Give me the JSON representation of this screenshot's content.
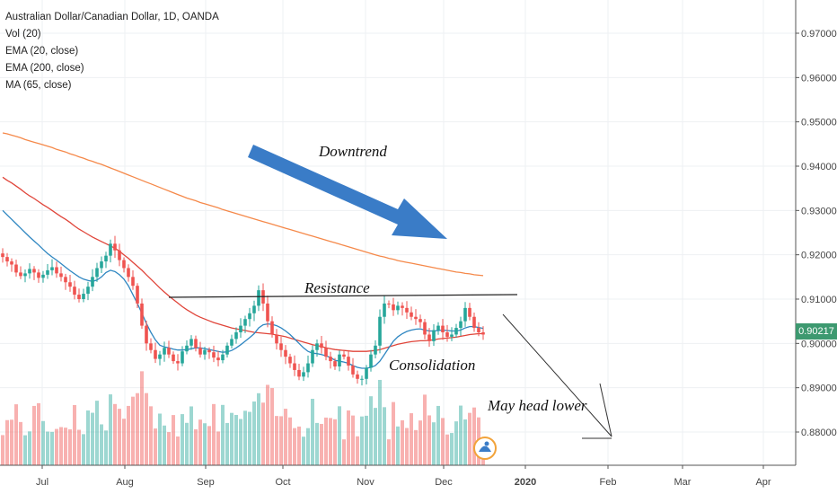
{
  "header": {
    "title": "Australian Dollar/Canadian Dollar, 1D, OANDA",
    "indicators": [
      "Vol (20)",
      "EMA (20, close)",
      "EMA (200, close)",
      "MA (65, close)"
    ]
  },
  "annotations": {
    "downtrend": "Downtrend",
    "resistance": "Resistance",
    "consolidation": "Consolidation",
    "may_head_lower": "May head lower"
  },
  "last_price": "0.90217",
  "colors": {
    "up": "#26a69a",
    "down": "#ef5350",
    "ema20": "#2e86c1",
    "ema200": "#f5894a",
    "ma65": "#e0453a",
    "arrow": "#3a7cc7",
    "price_tag": "#3d9970"
  },
  "chart_data": {
    "type": "candlestick",
    "title": "Australian Dollar/Canadian Dollar, 1D, OANDA",
    "x_ticks": [
      "Jul",
      "Aug",
      "Sep",
      "Oct",
      "Nov",
      "Dec",
      "2020",
      "Feb",
      "Mar",
      "Apr"
    ],
    "y_ticks": [
      "0.97000",
      "0.96000",
      "0.95000",
      "0.94000",
      "0.93000",
      "0.92000",
      "0.91000",
      "0.90000",
      "0.89000",
      "0.88000"
    ],
    "ylim": [
      0.8725,
      0.9775
    ],
    "last_price": 0.90217,
    "resistance_level": 0.9105,
    "closes": [
      0.9195,
      0.9185,
      0.9178,
      0.916,
      0.9152,
      0.9158,
      0.9168,
      0.916,
      0.9148,
      0.9155,
      0.9165,
      0.9172,
      0.9158,
      0.915,
      0.9138,
      0.9128,
      0.911,
      0.91,
      0.9112,
      0.9128,
      0.915,
      0.917,
      0.9185,
      0.9198,
      0.9225,
      0.921,
      0.9188,
      0.917,
      0.915,
      0.913,
      0.909,
      0.904,
      0.9,
      0.8985,
      0.8965,
      0.8975,
      0.899,
      0.8975,
      0.896,
      0.8955,
      0.8982,
      0.8995,
      0.901,
      0.899,
      0.8975,
      0.8985,
      0.898,
      0.8968,
      0.8962,
      0.8975,
      0.8995,
      0.901,
      0.9025,
      0.904,
      0.9055,
      0.9068,
      0.9085,
      0.912,
      0.909,
      0.905,
      0.902,
      0.9,
      0.8985,
      0.897,
      0.8955,
      0.894,
      0.8925,
      0.8935,
      0.8955,
      0.8985,
      0.9,
      0.899,
      0.897,
      0.896,
      0.8948,
      0.8975,
      0.897,
      0.895,
      0.893,
      0.892,
      0.892,
      0.8945,
      0.8975,
      0.8995,
      0.906,
      0.909,
      0.9088,
      0.9075,
      0.9085,
      0.908,
      0.907,
      0.906,
      0.9055,
      0.9048,
      0.902,
      0.9005,
      0.903,
      0.904,
      0.9025,
      0.9015,
      0.902,
      0.9035,
      0.905,
      0.908,
      0.906,
      0.9035,
      0.9025,
      0.902
    ],
    "ema20": [
      0.93,
      0.929,
      0.928,
      0.927,
      0.926,
      0.925,
      0.924,
      0.9231,
      0.9222,
      0.9212,
      0.9203,
      0.9195,
      0.9188,
      0.918,
      0.9172,
      0.9164,
      0.9157,
      0.915,
      0.9145,
      0.9142,
      0.914,
      0.9143,
      0.915,
      0.916,
      0.9165,
      0.9162,
      0.9155,
      0.9145,
      0.913,
      0.911,
      0.909,
      0.9068,
      0.9045,
      0.9025,
      0.9008,
      0.8996,
      0.8992,
      0.899,
      0.8987,
      0.8985,
      0.8985,
      0.8986,
      0.8988,
      0.899,
      0.899,
      0.8988,
      0.8986,
      0.8984,
      0.8982,
      0.898,
      0.8981,
      0.8984,
      0.899,
      0.8997,
      0.9005,
      0.9013,
      0.9022,
      0.9035,
      0.9042,
      0.9044,
      0.9043,
      0.904,
      0.9035,
      0.9028,
      0.902,
      0.901,
      0.9,
      0.899,
      0.8982,
      0.8978,
      0.8977,
      0.8975,
      0.8972,
      0.8968,
      0.8962,
      0.896,
      0.8958,
      0.8955,
      0.895,
      0.8946,
      0.8944,
      0.8944,
      0.8946,
      0.895,
      0.896,
      0.8975,
      0.899,
      0.9005,
      0.9015,
      0.9022,
      0.9027,
      0.903,
      0.9032,
      0.9033,
      0.903,
      0.9028,
      0.9028,
      0.9029,
      0.903,
      0.9029,
      0.9028,
      0.9028,
      0.903,
      0.9035,
      0.9038,
      0.9038,
      0.9036,
      0.9034
    ],
    "ma65": [
      0.9375,
      0.9368,
      0.9362,
      0.9355,
      0.9348,
      0.934,
      0.9333,
      0.9327,
      0.932,
      0.9313,
      0.9307,
      0.93,
      0.9293,
      0.9286,
      0.928,
      0.9273,
      0.9265,
      0.9258,
      0.9252,
      0.9246,
      0.924,
      0.9235,
      0.923,
      0.9225,
      0.922,
      0.9215,
      0.9208,
      0.92,
      0.9192,
      0.9183,
      0.9174,
      0.9165,
      0.9155,
      0.9145,
      0.9135,
      0.9125,
      0.9116,
      0.9107,
      0.9099,
      0.9091,
      0.9083,
      0.9076,
      0.907,
      0.9064,
      0.9059,
      0.9055,
      0.9051,
      0.9047,
      0.9044,
      0.9041,
      0.9038,
      0.9035,
      0.9033,
      0.9031,
      0.9029,
      0.9027,
      0.9025,
      0.9024,
      0.9023,
      0.9022,
      0.9021,
      0.9019,
      0.9017,
      0.9015,
      0.9012,
      0.9009,
      0.9006,
      0.9003,
      0.9,
      0.8997,
      0.8995,
      0.8993,
      0.899,
      0.8988,
      0.8986,
      0.8985,
      0.8984,
      0.8983,
      0.8982,
      0.8982,
      0.8982,
      0.8982,
      0.8983,
      0.8984,
      0.8986,
      0.8989,
      0.8992,
      0.8995,
      0.8998,
      0.9,
      0.9002,
      0.9004,
      0.9005,
      0.9006,
      0.9006,
      0.9007,
      0.9008,
      0.901,
      0.9011,
      0.9012,
      0.9013,
      0.9014,
      0.9016,
      0.9018,
      0.902,
      0.9021,
      0.9022,
      0.9022
    ],
    "ema200": [
      0.9475,
      0.9473,
      0.947,
      0.9467,
      0.9464,
      0.946,
      0.9457,
      0.9454,
      0.9451,
      0.9448,
      0.9445,
      0.9442,
      0.9438,
      0.9435,
      0.9432,
      0.9428,
      0.9425,
      0.9421,
      0.9418,
      0.9414,
      0.9411,
      0.9407,
      0.9404,
      0.94,
      0.9396,
      0.9392,
      0.9388,
      0.9384,
      0.938,
      0.9376,
      0.9372,
      0.9368,
      0.9364,
      0.936,
      0.9356,
      0.9352,
      0.9348,
      0.9344,
      0.934,
      0.9336,
      0.9332,
      0.9328,
      0.9325,
      0.9322,
      0.9318,
      0.9315,
      0.9312,
      0.9309,
      0.9306,
      0.9302,
      0.9299,
      0.9296,
      0.9293,
      0.929,
      0.9287,
      0.9284,
      0.9281,
      0.9278,
      0.9275,
      0.9272,
      0.9269,
      0.9266,
      0.9263,
      0.926,
      0.9257,
      0.9254,
      0.9251,
      0.9248,
      0.9245,
      0.9242,
      0.9239,
      0.9236,
      0.9233,
      0.923,
      0.9227,
      0.9224,
      0.9221,
      0.9218,
      0.9215,
      0.9212,
      0.9209,
      0.9206,
      0.9203,
      0.92,
      0.9197,
      0.9195,
      0.9192,
      0.919,
      0.9187,
      0.9185,
      0.9183,
      0.9181,
      0.9179,
      0.9177,
      0.9175,
      0.9173,
      0.9171,
      0.9169,
      0.9167,
      0.9165,
      0.9163,
      0.9161,
      0.916,
      0.9158,
      0.9157,
      0.9155,
      0.9154,
      0.9153
    ]
  }
}
